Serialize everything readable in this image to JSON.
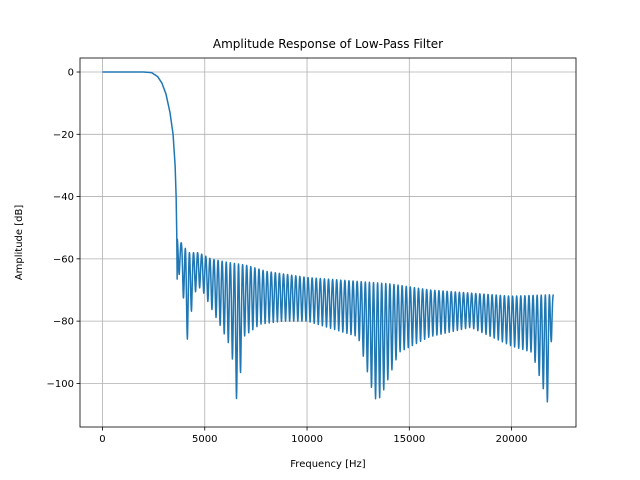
{
  "chart_data": {
    "type": "line",
    "title": "Amplitude Response of Low-Pass Filter",
    "xlabel": "Frequency [Hz]",
    "ylabel": "Amplitude [dB]",
    "xlim": [
      -1100,
      23150
    ],
    "ylim": [
      -114,
      4.5
    ],
    "xticks": [
      0,
      5000,
      10000,
      15000,
      20000
    ],
    "xtick_labels": [
      "0",
      "5000",
      "10000",
      "15000",
      "20000"
    ],
    "yticks": [
      0,
      -20,
      -40,
      -60,
      -80,
      -100
    ],
    "ytick_labels": [
      "0",
      "−20",
      "−40",
      "−60",
      "−80",
      "−100"
    ],
    "grid": true,
    "legend": "none",
    "series": [
      {
        "color": "#1f77b4",
        "passband": [
          [
            0,
            0
          ],
          [
            2000,
            0
          ],
          [
            2400,
            -0.2
          ],
          [
            2700,
            -1.5
          ],
          [
            2900,
            -3.5
          ],
          [
            3100,
            -7
          ],
          [
            3300,
            -13
          ],
          [
            3450,
            -20
          ],
          [
            3550,
            -30
          ],
          [
            3600,
            -40
          ],
          [
            3630,
            -52
          ],
          [
            3650,
            -66.5
          ]
        ],
        "stopband_peaks": [
          [
            3700,
            -53.5
          ],
          [
            4200,
            -58
          ],
          [
            4700,
            -58
          ],
          [
            5300,
            -60
          ],
          [
            6000,
            -61
          ],
          [
            7000,
            -62
          ],
          [
            8000,
            -64
          ],
          [
            10000,
            -66
          ],
          [
            12000,
            -67
          ],
          [
            14000,
            -68
          ],
          [
            16000,
            -70
          ],
          [
            18000,
            -71
          ],
          [
            20000,
            -72
          ],
          [
            22050,
            -71.5
          ]
        ],
        "stopband_nulls": [
          [
            3700,
            -66.5
          ],
          [
            3850,
            -62
          ],
          [
            4100,
            -88
          ],
          [
            4480,
            -71
          ],
          [
            4800,
            -69
          ],
          [
            5250,
            -75
          ],
          [
            5800,
            -82
          ],
          [
            6300,
            -89
          ],
          [
            6600,
            -108
          ],
          [
            6900,
            -85
          ],
          [
            7700,
            -81
          ],
          [
            8800,
            -80
          ],
          [
            10000,
            -80
          ],
          [
            11000,
            -82
          ],
          [
            12500,
            -85
          ],
          [
            13300,
            -105
          ],
          [
            13600,
            -104.5
          ],
          [
            14500,
            -90
          ],
          [
            16000,
            -85
          ],
          [
            18000,
            -82
          ],
          [
            20000,
            -88
          ],
          [
            21000,
            -90
          ],
          [
            21800,
            -107
          ],
          [
            22050,
            -72
          ]
        ],
        "stopband_ripple_period_hz": 200
      }
    ]
  }
}
